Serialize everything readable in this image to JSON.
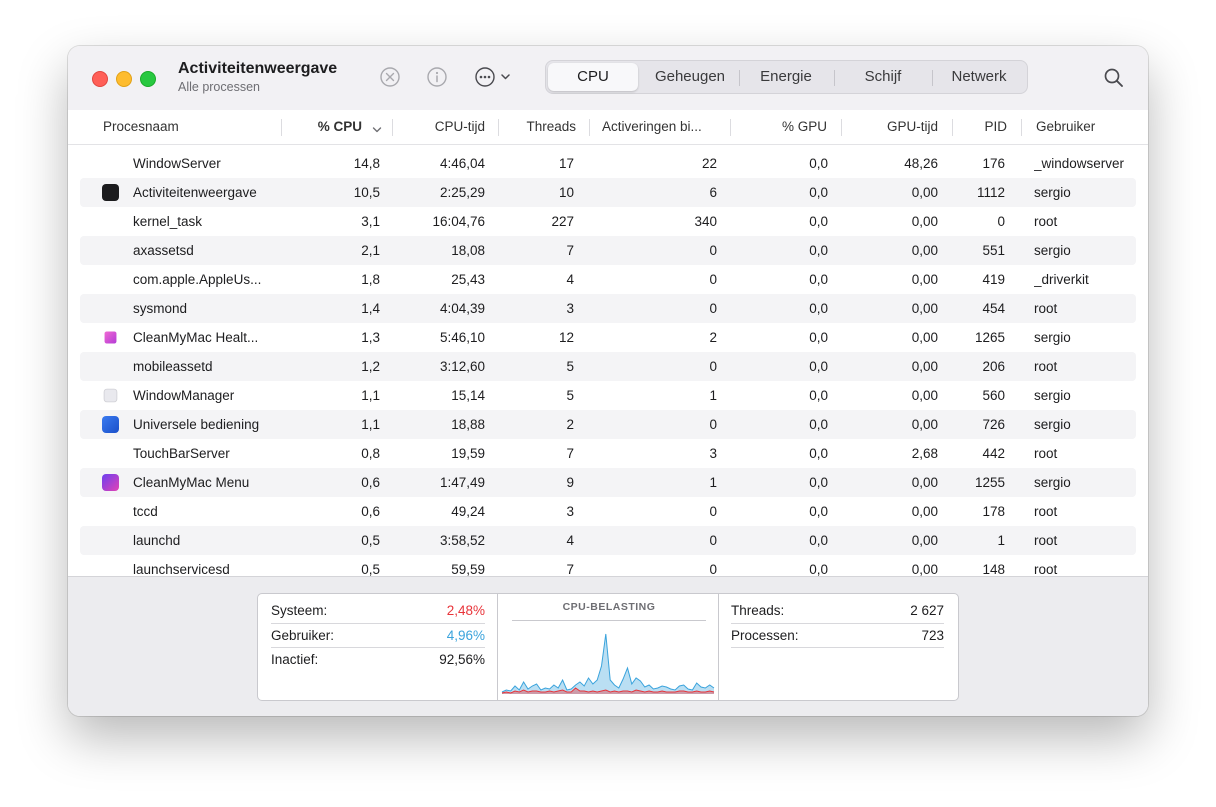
{
  "window": {
    "title": "Activiteitenweergave",
    "subtitle": "Alle processen"
  },
  "toolbar": {
    "icons": [
      "stop-process-icon",
      "info-icon",
      "more-actions-icon",
      "search-icon"
    ],
    "tabs": [
      {
        "label": "CPU",
        "active": true
      },
      {
        "label": "Geheugen",
        "active": false
      },
      {
        "label": "Energie",
        "active": false
      },
      {
        "label": "Schijf",
        "active": false
      },
      {
        "label": "Netwerk",
        "active": false
      }
    ]
  },
  "table": {
    "columns": [
      "Procesnaam",
      "% CPU",
      "CPU-tijd",
      "Threads",
      "Activeringen bi...",
      "% GPU",
      "GPU-tijd",
      "PID",
      "Gebruiker"
    ],
    "sorted_column": "% CPU",
    "rows": [
      {
        "icon": "",
        "name": "WindowServer",
        "cpu": "14,8",
        "cpu_time": "4:46,04",
        "threads": "17",
        "wakeups": "22",
        "gpu": "0,0",
        "gpu_time": "48,26",
        "pid": "176",
        "user": "_windowserver"
      },
      {
        "icon": "activity-monitor-icon",
        "name": "Activiteitenweergave",
        "cpu": "10,5",
        "cpu_time": "2:25,29",
        "threads": "10",
        "wakeups": "6",
        "gpu": "0,0",
        "gpu_time": "0,00",
        "pid": "1112",
        "user": "sergio"
      },
      {
        "icon": "",
        "name": "kernel_task",
        "cpu": "3,1",
        "cpu_time": "16:04,76",
        "threads": "227",
        "wakeups": "340",
        "gpu": "0,0",
        "gpu_time": "0,00",
        "pid": "0",
        "user": "root"
      },
      {
        "icon": "",
        "name": "axassetsd",
        "cpu": "2,1",
        "cpu_time": "18,08",
        "threads": "7",
        "wakeups": "0",
        "gpu": "0,0",
        "gpu_time": "0,00",
        "pid": "551",
        "user": "sergio"
      },
      {
        "icon": "",
        "name": "com.apple.AppleUs...",
        "cpu": "1,8",
        "cpu_time": "25,43",
        "threads": "4",
        "wakeups": "0",
        "gpu": "0,0",
        "gpu_time": "0,00",
        "pid": "419",
        "user": "_driverkit"
      },
      {
        "icon": "",
        "name": "sysmond",
        "cpu": "1,4",
        "cpu_time": "4:04,39",
        "threads": "3",
        "wakeups": "0",
        "gpu": "0,0",
        "gpu_time": "0,00",
        "pid": "454",
        "user": "root"
      },
      {
        "icon": "cleanmymac-health-icon",
        "name": "CleanMyMac Healt...",
        "cpu": "1,3",
        "cpu_time": "5:46,10",
        "threads": "12",
        "wakeups": "2",
        "gpu": "0,0",
        "gpu_time": "0,00",
        "pid": "1265",
        "user": "sergio"
      },
      {
        "icon": "",
        "name": "mobileassetd",
        "cpu": "1,2",
        "cpu_time": "3:12,60",
        "threads": "5",
        "wakeups": "0",
        "gpu": "0,0",
        "gpu_time": "0,00",
        "pid": "206",
        "user": "root"
      },
      {
        "icon": "window-manager-icon",
        "name": "WindowManager",
        "cpu": "1,1",
        "cpu_time": "15,14",
        "threads": "5",
        "wakeups": "1",
        "gpu": "0,0",
        "gpu_time": "0,00",
        "pid": "560",
        "user": "sergio"
      },
      {
        "icon": "universal-control-icon",
        "name": "Universele bediening",
        "cpu": "1,1",
        "cpu_time": "18,88",
        "threads": "2",
        "wakeups": "0",
        "gpu": "0,0",
        "gpu_time": "0,00",
        "pid": "726",
        "user": "sergio"
      },
      {
        "icon": "",
        "name": "TouchBarServer",
        "cpu": "0,8",
        "cpu_time": "19,59",
        "threads": "7",
        "wakeups": "3",
        "gpu": "0,0",
        "gpu_time": "2,68",
        "pid": "442",
        "user": "root"
      },
      {
        "icon": "cleanmymac-menu-icon",
        "name": "CleanMyMac Menu",
        "cpu": "0,6",
        "cpu_time": "1:47,49",
        "threads": "9",
        "wakeups": "1",
        "gpu": "0,0",
        "gpu_time": "0,00",
        "pid": "1255",
        "user": "sergio"
      },
      {
        "icon": "",
        "name": "tccd",
        "cpu": "0,6",
        "cpu_time": "49,24",
        "threads": "3",
        "wakeups": "0",
        "gpu": "0,0",
        "gpu_time": "0,00",
        "pid": "178",
        "user": "root"
      },
      {
        "icon": "",
        "name": "launchd",
        "cpu": "0,5",
        "cpu_time": "3:58,52",
        "threads": "4",
        "wakeups": "0",
        "gpu": "0,0",
        "gpu_time": "0,00",
        "pid": "1",
        "user": "root"
      },
      {
        "icon": "",
        "name": "launchservicesd",
        "cpu": "0,5",
        "cpu_time": "59,59",
        "threads": "7",
        "wakeups": "0",
        "gpu": "0,0",
        "gpu_time": "0,00",
        "pid": "148",
        "user": "root"
      }
    ]
  },
  "summary": {
    "left": [
      {
        "label": "Systeem:",
        "value": "2,48%",
        "color": "#e8343a"
      },
      {
        "label": "Gebruiker:",
        "value": "4,96%",
        "color": "#3aa3dc"
      },
      {
        "label": "Inactief:",
        "value": "92,56%",
        "color": "#1d1d1f"
      }
    ],
    "graph_title": "CPU-BELASTING",
    "right": [
      {
        "label": "Threads:",
        "value": "2 627"
      },
      {
        "label": "Processen:",
        "value": "723"
      }
    ]
  },
  "colors": {
    "system": "#e8343a",
    "user": "#3aa3dc"
  },
  "cpu_history": {
    "user": [
      3,
      4,
      2,
      6,
      3,
      9,
      4,
      5,
      7,
      3,
      5,
      4,
      6,
      5,
      8,
      3,
      4,
      12,
      7,
      5,
      4,
      6,
      5,
      6,
      8,
      4,
      5,
      3,
      6,
      7,
      5,
      9,
      6,
      4,
      5,
      3,
      4,
      6,
      5,
      4,
      3,
      5,
      6,
      4,
      3,
      7,
      5,
      4,
      6,
      5
    ],
    "system": [
      1,
      2,
      1,
      3,
      2,
      4,
      2,
      3,
      3,
      2,
      2,
      3,
      2,
      3,
      4,
      2,
      2,
      6,
      3,
      3,
      2,
      3,
      2,
      3,
      4,
      2,
      3,
      2,
      3,
      3,
      2,
      4,
      3,
      2,
      3,
      2,
      2,
      3,
      2,
      2,
      2,
      3,
      3,
      2,
      2,
      3,
      2,
      2,
      3,
      2
    ],
    "combined_peak_profile": [
      2,
      4,
      3,
      8,
      4,
      12,
      5,
      8,
      10,
      4,
      6,
      5,
      9,
      6,
      14,
      4,
      5,
      9,
      12,
      8,
      16,
      10,
      14,
      28,
      60,
      14,
      9,
      6,
      15,
      26,
      10,
      16,
      13,
      7,
      9,
      5,
      6,
      8,
      7,
      5,
      4,
      8,
      9,
      5,
      4,
      11,
      7,
      6,
      9,
      6
    ]
  }
}
